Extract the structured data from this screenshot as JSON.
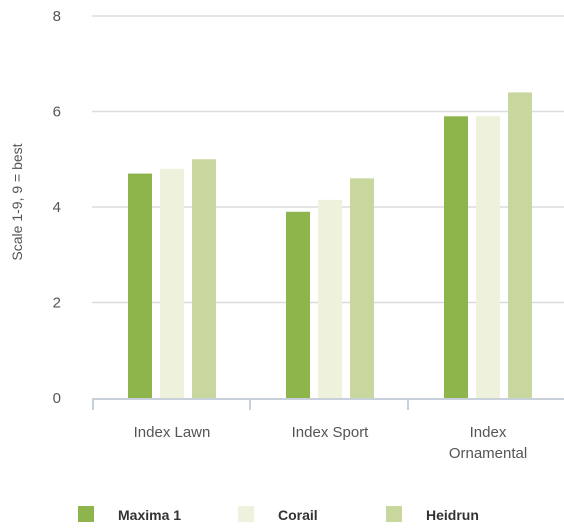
{
  "chart_data": {
    "type": "bar",
    "ylabel": "Scale 1-9, 9 = best",
    "ylim": [
      0,
      8
    ],
    "yticks": [
      "0",
      "2",
      "4",
      "6",
      "8"
    ],
    "grid": true,
    "legend_position": "bottom",
    "categories": [
      [
        "Index Lawn"
      ],
      [
        "Index Sport"
      ],
      [
        "Index",
        "Ornamental"
      ]
    ],
    "series": [
      {
        "name": "Maxima 1",
        "color": "#8db54b",
        "values": [
          4.7,
          3.9,
          5.9
        ]
      },
      {
        "name": "Corail",
        "color": "#eef1dc",
        "values": [
          4.8,
          4.15,
          5.9
        ]
      },
      {
        "name": "Heidrun",
        "color": "#c8d79d",
        "values": [
          5.0,
          4.6,
          6.4
        ]
      }
    ]
  }
}
